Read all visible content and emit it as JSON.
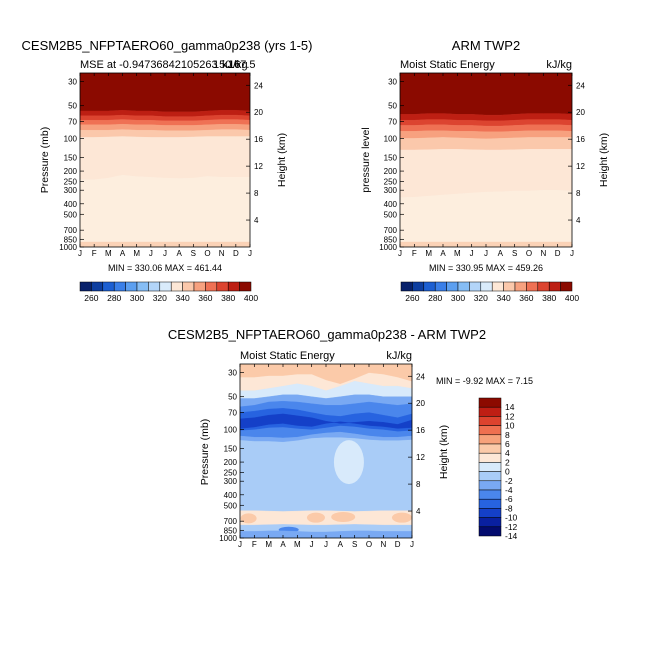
{
  "panels": [
    {
      "title": "CESM2B5_NFPTAERO60_gamma0p238 (yrs 1-5)",
      "subtitle_left": "MSE at -0.94736842105263",
      "subtitle_right": "kJ/kg",
      "subtitle_overlap": "150.6",
      "subtitle_overlap2": "167.5",
      "ylabel": "Pressure (mb)",
      "ylabel_right": "Height (km)",
      "stats": "MIN = 330.06  MAX = 461.44"
    },
    {
      "title": "ARM TWP2",
      "subtitle_left": "Moist Static Energy",
      "subtitle_right": "kJ/kg",
      "ylabel": "pressure level",
      "ylabel_right": "Height (km)",
      "stats": "MIN = 330.95  MAX = 459.26"
    },
    {
      "title": "CESM2B5_NFPTAERO60_gamma0p238 - ARM TWP2",
      "subtitle_left": "Moist Static Energy",
      "subtitle_right": "kJ/kg",
      "ylabel": "Pressure (mb)",
      "ylabel_right": "Height (km)",
      "stats": "MIN =  -9.92  MAX =   7.15"
    }
  ],
  "chart_data": [
    {
      "type": "heatmap",
      "title": "CESM2B5_NFPTAERO60_gamma0p238 (yrs 1-5)",
      "months": [
        "J",
        "F",
        "M",
        "A",
        "M",
        "J",
        "J",
        "A",
        "S",
        "O",
        "N",
        "D",
        "J"
      ],
      "pressure_ticks": [
        30,
        50,
        70,
        100,
        150,
        200,
        250,
        300,
        400,
        500,
        700,
        850,
        1000
      ],
      "height_ticks": [
        4,
        8,
        12,
        16,
        20,
        24
      ],
      "units": "kJ/kg",
      "levels": [
        260,
        270,
        280,
        290,
        300,
        310,
        320,
        330,
        340,
        350,
        360,
        370,
        380,
        390,
        400
      ],
      "colorbar_labels": [
        "260",
        "280",
        "300",
        "320",
        "340",
        "360",
        "380",
        "400"
      ],
      "boundaries": {
        "b340_350": [
          240,
          240,
          232,
          218,
          225,
          228,
          232,
          234,
          232,
          224,
          228,
          228,
          228
        ],
        "b350_360": [
          98,
          98,
          97,
          96,
          97,
          98,
          98,
          98,
          97,
          96,
          96,
          96,
          96
        ],
        "b360_370": [
          84,
          84,
          84,
          83,
          84,
          84,
          85,
          85,
          85,
          84,
          83,
          83,
          84
        ],
        "b370_380": [
          75,
          75,
          75,
          74,
          75,
          75,
          76,
          76,
          76,
          75,
          74,
          74,
          75
        ],
        "b380_390": [
          68,
          68,
          68,
          67,
          68,
          68,
          69,
          69,
          69,
          68,
          67,
          67,
          68
        ],
        "b390_400": [
          62,
          62,
          62,
          61,
          62,
          62,
          63,
          63,
          63,
          62,
          61,
          61,
          62
        ],
        "b400_top": [
          56,
          56,
          56,
          55,
          56,
          56,
          57,
          57,
          57,
          56,
          55,
          55,
          56
        ]
      },
      "near_surface_band": [
        900,
        1000
      ]
    },
    {
      "type": "heatmap",
      "title": "ARM TWP2",
      "months": [
        "J",
        "F",
        "M",
        "A",
        "M",
        "J",
        "J",
        "A",
        "S",
        "O",
        "N",
        "D",
        "J"
      ],
      "pressure_ticks": [
        30,
        50,
        70,
        100,
        150,
        200,
        250,
        300,
        400,
        500,
        700,
        850,
        1000
      ],
      "height_ticks": [
        4,
        8,
        12,
        16,
        20,
        24
      ],
      "units": "kJ/kg",
      "levels": [
        260,
        270,
        280,
        290,
        300,
        310,
        320,
        330,
        340,
        350,
        360,
        370,
        380,
        390,
        400
      ],
      "colorbar_labels": [
        "260",
        "280",
        "300",
        "320",
        "340",
        "360",
        "380",
        "400"
      ],
      "boundaries": {
        "b340_350": [
          350,
          348,
          340,
          332,
          325,
          318,
          312,
          310,
          305,
          305,
          300,
          300,
          306
        ],
        "b350_360": [
          128,
          128,
          127,
          126,
          126,
          127,
          128,
          128,
          127,
          126,
          126,
          126,
          126
        ],
        "b360_370": [
          100,
          100,
          99,
          98,
          99,
          100,
          101,
          100,
          99,
          98,
          98,
          98,
          98
        ],
        "b370_380": [
          86,
          86,
          85,
          85,
          86,
          86,
          87,
          87,
          86,
          85,
          85,
          85,
          86
        ],
        "b380_390": [
          76,
          76,
          75,
          75,
          76,
          76,
          77,
          77,
          76,
          75,
          75,
          75,
          76
        ],
        "b390_400": [
          68,
          68,
          67,
          67,
          68,
          68,
          69,
          69,
          68,
          67,
          67,
          67,
          68
        ],
        "b400_top": [
          60,
          60,
          59,
          59,
          60,
          60,
          61,
          61,
          60,
          59,
          59,
          59,
          60
        ]
      },
      "near_surface_band": [
        900,
        1000
      ]
    },
    {
      "type": "heatmap",
      "title": "CESM2B5_NFPTAERO60_gamma0p238 - ARM TWP2",
      "months": [
        "J",
        "F",
        "M",
        "A",
        "M",
        "J",
        "J",
        "A",
        "S",
        "O",
        "N",
        "D",
        "J"
      ],
      "pressure_ticks": [
        30,
        50,
        70,
        100,
        150,
        200,
        250,
        300,
        400,
        500,
        700,
        850,
        1000
      ],
      "height_ticks": [
        4,
        8,
        12,
        16,
        20,
        24
      ],
      "units": "kJ/kg",
      "levels": [
        -14,
        -12,
        -10,
        -8,
        -6,
        -4,
        -2,
        0,
        2,
        4,
        6,
        8,
        10,
        12,
        14
      ],
      "colorbar_labels": [
        "14",
        "12",
        "10",
        "8",
        "6",
        "4",
        "2",
        "0",
        "-2",
        "-4",
        "-6",
        "-8",
        "-10",
        "-12",
        "-14"
      ],
      "features": {
        "positive_top_band": [
          28,
          40
        ],
        "negative_blob_lower_stratosphere": {
          "months": "Jan-Dec",
          "pressure": [
            60,
            110
          ],
          "value": -8
        },
        "positive_lower_band": {
          "pressure": [
            600,
            750
          ],
          "value": 2
        },
        "slightly_negative_patch": {
          "months": "Aug-Sep",
          "pressure": [
            150,
            300
          ],
          "value": -1
        }
      }
    }
  ]
}
